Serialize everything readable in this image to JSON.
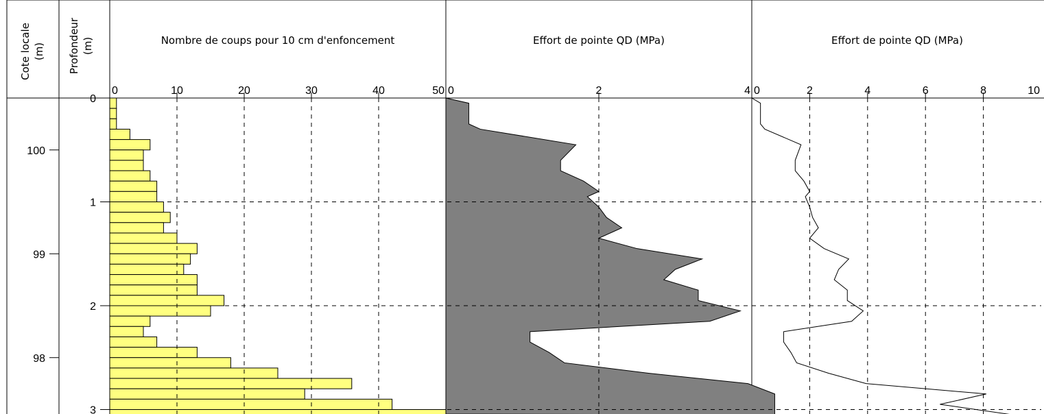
{
  "chart_data": [
    {
      "type": "bar",
      "orientation": "horizontal",
      "title": "Nombre de coups pour 10 cm d'enfoncement",
      "xlim": [
        0,
        50
      ],
      "xticks": [
        "0",
        "10",
        "20",
        "30",
        "40",
        "50"
      ],
      "bar_color": "#ffff80",
      "depth_step_m": 0.1,
      "depth_m": [
        0.05,
        0.15,
        0.25,
        0.35,
        0.45,
        0.55,
        0.65,
        0.75,
        0.85,
        0.95,
        1.05,
        1.15,
        1.25,
        1.35,
        1.45,
        1.55,
        1.65,
        1.75,
        1.85,
        1.95,
        2.05,
        2.15,
        2.25,
        2.35,
        2.45,
        2.55,
        2.65,
        2.75,
        2.85,
        2.95,
        3.05
      ],
      "values": [
        1,
        1,
        1,
        3,
        6,
        5,
        5,
        6,
        7,
        7,
        8,
        9,
        8,
        10,
        13,
        12,
        11,
        13,
        13,
        17,
        15,
        6,
        5,
        7,
        13,
        18,
        25,
        36,
        29,
        42,
        50
      ]
    },
    {
      "type": "area",
      "title": "Effort de pointe QD (MPa)",
      "xlim": [
        0,
        4
      ],
      "xticks": [
        "0",
        "2",
        "4"
      ],
      "fill_color": "#808080",
      "depth_m": [
        0,
        0.05,
        0.25,
        0.3,
        0.45,
        0.6,
        0.7,
        0.8,
        0.9,
        0.95,
        1.05,
        1.15,
        1.25,
        1.35,
        1.45,
        1.55,
        1.65,
        1.75,
        1.85,
        1.95,
        2.05,
        2.15,
        2.25,
        2.35,
        2.45,
        2.55,
        2.65,
        2.75,
        2.85,
        2.95,
        3.05
      ],
      "values": [
        0,
        0.3,
        0.3,
        0.45,
        1.7,
        1.5,
        1.5,
        1.8,
        2.0,
        1.85,
        2.0,
        2.1,
        2.3,
        2.0,
        2.5,
        3.35,
        3.0,
        2.85,
        3.3,
        3.3,
        3.85,
        3.45,
        1.1,
        1.1,
        1.35,
        1.55,
        2.65,
        3.95,
        4.3,
        4.3,
        4.3
      ]
    },
    {
      "type": "line",
      "title": "Effort de pointe QD (MPa)",
      "xlim": [
        0,
        10
      ],
      "xticks": [
        "0",
        "2",
        "4",
        "6",
        "8",
        "10"
      ],
      "depth_m": [
        0,
        0.05,
        0.25,
        0.3,
        0.45,
        0.6,
        0.7,
        0.8,
        0.9,
        0.95,
        1.05,
        1.15,
        1.25,
        1.35,
        1.45,
        1.55,
        1.65,
        1.75,
        1.85,
        1.95,
        2.05,
        2.15,
        2.25,
        2.35,
        2.45,
        2.55,
        2.65,
        2.75,
        2.85,
        2.95,
        3.05
      ],
      "values": [
        0,
        0.3,
        0.3,
        0.45,
        1.7,
        1.5,
        1.5,
        1.8,
        2.0,
        1.85,
        2.0,
        2.1,
        2.3,
        2.0,
        2.5,
        3.35,
        3.0,
        2.85,
        3.3,
        3.3,
        3.85,
        3.45,
        1.1,
        1.1,
        1.35,
        1.55,
        2.65,
        3.95,
        8.1,
        6.5,
        9.0
      ]
    }
  ],
  "axes": {
    "cote_title": "Cote locale",
    "cote_unit": "(m)",
    "cote_ticks": [
      {
        "label": "100",
        "value": 100
      },
      {
        "label": "99",
        "value": 99
      },
      {
        "label": "98",
        "value": 98
      }
    ],
    "depth_title": "Profondeur",
    "depth_unit": "(m)",
    "depth_ticks": [
      {
        "label": "0",
        "value": 0
      },
      {
        "label": "1",
        "value": 1
      },
      {
        "label": "2",
        "value": 2
      },
      {
        "label": "3",
        "value": 3
      }
    ],
    "cote_at_surface": 100.5,
    "depth_range": [
      0,
      3.05
    ]
  }
}
